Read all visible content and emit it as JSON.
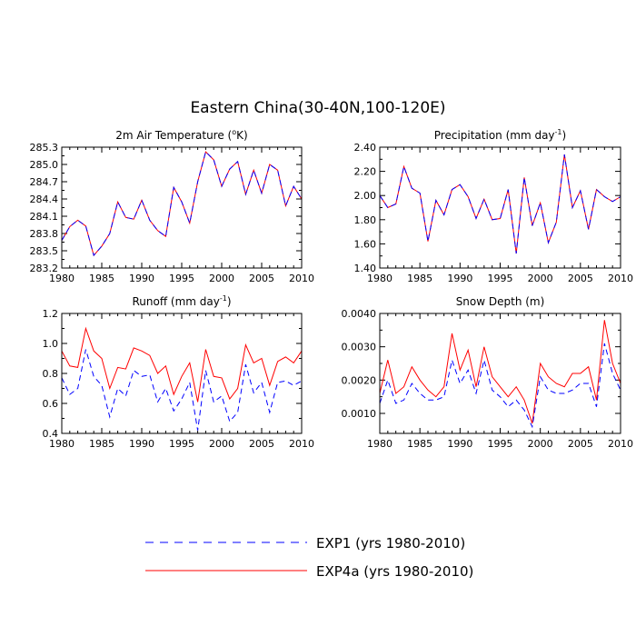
{
  "title": "Eastern China(30-40N,100-120E)",
  "legend": [
    {
      "label": "EXP1 (yrs 1980-2010)",
      "color": "#0000ff",
      "style": "dashed"
    },
    {
      "label": "EXP4a (yrs 1980-2010)",
      "color": "#ff0000",
      "style": "solid"
    }
  ],
  "chart_data": [
    {
      "type": "line",
      "title": "2m Air Temperature (°K)",
      "title_main": "2m Air Temperature (",
      "title_sup": "o",
      "title_tail": "K)",
      "x": [
        1980,
        1981,
        1982,
        1983,
        1984,
        1985,
        1986,
        1987,
        1988,
        1989,
        1990,
        1991,
        1992,
        1993,
        1994,
        1995,
        1996,
        1997,
        1998,
        1999,
        2000,
        2001,
        2002,
        2003,
        2004,
        2005,
        2006,
        2007,
        2008,
        2009,
        2010
      ],
      "xlim": [
        1980,
        2010
      ],
      "xticks": [
        "1980",
        "1985",
        "1990",
        "1995",
        "2000",
        "2005",
        "2010"
      ],
      "ylim": [
        283.2,
        285.3
      ],
      "yticks": [
        "283.2",
        "283.5",
        "283.8",
        "284.1",
        "284.4",
        "284.7",
        "285.0",
        "285.3"
      ],
      "series": [
        {
          "name": "EXP1 (yrs 1980-2010)",
          "values": [
            283.68,
            283.92,
            284.03,
            283.93,
            283.42,
            283.58,
            283.8,
            284.35,
            284.08,
            284.05,
            284.38,
            284.03,
            283.85,
            283.75,
            284.6,
            284.35,
            283.98,
            284.7,
            285.22,
            285.08,
            284.62,
            284.92,
            285.05,
            284.48,
            284.9,
            284.5,
            285.0,
            284.9,
            284.28,
            284.62,
            284.4
          ]
        },
        {
          "name": "EXP4a (yrs 1980-2010)",
          "values": [
            283.68,
            283.92,
            284.03,
            283.93,
            283.42,
            283.58,
            283.8,
            284.35,
            284.08,
            284.05,
            284.38,
            284.03,
            283.85,
            283.75,
            284.6,
            284.35,
            283.98,
            284.7,
            285.22,
            285.08,
            284.62,
            284.92,
            285.05,
            284.48,
            284.9,
            284.5,
            285.0,
            284.9,
            284.28,
            284.62,
            284.4
          ]
        }
      ]
    },
    {
      "type": "line",
      "title": "Precipitation (mm day-1)",
      "title_main": "Precipitation (mm day",
      "title_sup": "-1",
      "title_tail": ")",
      "x": [
        1980,
        1981,
        1982,
        1983,
        1984,
        1985,
        1986,
        1987,
        1988,
        1989,
        1990,
        1991,
        1992,
        1993,
        1994,
        1995,
        1996,
        1997,
        1998,
        1999,
        2000,
        2001,
        2002,
        2003,
        2004,
        2005,
        2006,
        2007,
        2008,
        2009,
        2010
      ],
      "xlim": [
        1980,
        2010
      ],
      "xticks": [
        "1980",
        "1985",
        "1990",
        "1995",
        "2000",
        "2005",
        "2010"
      ],
      "ylim": [
        1.4,
        2.4
      ],
      "yticks": [
        "1.40",
        "1.60",
        "1.80",
        "2.00",
        "2.20",
        "2.40"
      ],
      "series": [
        {
          "name": "EXP1 (yrs 1980-2010)",
          "values": [
            2.0,
            1.9,
            1.93,
            2.24,
            2.06,
            2.02,
            1.62,
            1.96,
            1.84,
            2.05,
            2.09,
            1.99,
            1.81,
            1.97,
            1.8,
            1.81,
            2.05,
            1.52,
            2.15,
            1.75,
            1.94,
            1.61,
            1.78,
            2.34,
            1.9,
            2.04,
            1.72,
            2.05,
            1.99,
            1.95,
            1.99
          ]
        },
        {
          "name": "EXP4a (yrs 1980-2010)",
          "values": [
            2.0,
            1.9,
            1.93,
            2.24,
            2.06,
            2.02,
            1.62,
            1.96,
            1.84,
            2.05,
            2.09,
            1.99,
            1.81,
            1.97,
            1.8,
            1.81,
            2.05,
            1.52,
            2.15,
            1.75,
            1.94,
            1.61,
            1.78,
            2.34,
            1.9,
            2.04,
            1.72,
            2.05,
            1.99,
            1.95,
            1.99
          ]
        }
      ]
    },
    {
      "type": "line",
      "title": "Runoff (mm day-1)",
      "title_main": "Runoff (mm day",
      "title_sup": "-1",
      "title_tail": ")",
      "x": [
        1980,
        1981,
        1982,
        1983,
        1984,
        1985,
        1986,
        1987,
        1988,
        1989,
        1990,
        1991,
        1992,
        1993,
        1994,
        1995,
        1996,
        1997,
        1998,
        1999,
        2000,
        2001,
        2002,
        2003,
        2004,
        2005,
        2006,
        2007,
        2008,
        2009,
        2010
      ],
      "xlim": [
        1980,
        2010
      ],
      "xticks": [
        "1980",
        "1985",
        "1990",
        "1995",
        "2000",
        "2005",
        "2010"
      ],
      "ylim": [
        0.4,
        1.2
      ],
      "yticks": [
        "0.4",
        "0.6",
        "0.8",
        "1.0",
        "1.2"
      ],
      "series": [
        {
          "name": "EXP1 (yrs 1980-2010)",
          "values": [
            0.77,
            0.66,
            0.7,
            0.96,
            0.78,
            0.72,
            0.51,
            0.7,
            0.65,
            0.82,
            0.78,
            0.79,
            0.61,
            0.7,
            0.55,
            0.63,
            0.74,
            0.42,
            0.82,
            0.61,
            0.65,
            0.48,
            0.54,
            0.86,
            0.67,
            0.74,
            0.54,
            0.74,
            0.75,
            0.72,
            0.75
          ]
        },
        {
          "name": "EXP4a (yrs 1980-2010)",
          "values": [
            0.95,
            0.85,
            0.84,
            1.1,
            0.95,
            0.9,
            0.7,
            0.84,
            0.83,
            0.97,
            0.95,
            0.92,
            0.8,
            0.85,
            0.66,
            0.78,
            0.87,
            0.61,
            0.96,
            0.78,
            0.77,
            0.63,
            0.7,
            0.99,
            0.87,
            0.9,
            0.72,
            0.88,
            0.91,
            0.87,
            0.95
          ]
        }
      ]
    },
    {
      "type": "line",
      "title": "Snow Depth (m)",
      "title_main": "Snow Depth (m)",
      "title_sup": "",
      "title_tail": "",
      "x": [
        1980,
        1981,
        1982,
        1983,
        1984,
        1985,
        1986,
        1987,
        1988,
        1989,
        1990,
        1991,
        1992,
        1993,
        1994,
        1995,
        1996,
        1997,
        1998,
        1999,
        2000,
        2001,
        2002,
        2003,
        2004,
        2005,
        2006,
        2007,
        2008,
        2009,
        2010
      ],
      "xlim": [
        1980,
        2010
      ],
      "xticks": [
        "1980",
        "1985",
        "1990",
        "1995",
        "2000",
        "2005",
        "2010"
      ],
      "ylim": [
        0.0004,
        0.004
      ],
      "yticks": [
        "0.0010",
        "0.0020",
        "0.0030",
        "0.0040"
      ],
      "series": [
        {
          "name": "EXP1 (yrs 1980-2010)",
          "values": [
            0.0013,
            0.002,
            0.0013,
            0.0014,
            0.0019,
            0.0016,
            0.0014,
            0.0014,
            0.0015,
            0.0026,
            0.0019,
            0.0023,
            0.0016,
            0.0026,
            0.0017,
            0.0015,
            0.0012,
            0.0014,
            0.0011,
            0.0006,
            0.0021,
            0.0017,
            0.0016,
            0.0016,
            0.0017,
            0.0019,
            0.0019,
            0.0012,
            0.0031,
            0.0022,
            0.0017
          ]
        },
        {
          "name": "EXP4a (yrs 1980-2010)",
          "values": [
            0.0016,
            0.0026,
            0.0016,
            0.0018,
            0.0024,
            0.002,
            0.0017,
            0.0015,
            0.0018,
            0.0034,
            0.0023,
            0.0029,
            0.0018,
            0.003,
            0.0021,
            0.0018,
            0.0015,
            0.0018,
            0.0014,
            0.0007,
            0.0025,
            0.0021,
            0.0019,
            0.0018,
            0.0022,
            0.0022,
            0.0024,
            0.0014,
            0.0038,
            0.0025,
            0.0019
          ]
        }
      ]
    }
  ]
}
